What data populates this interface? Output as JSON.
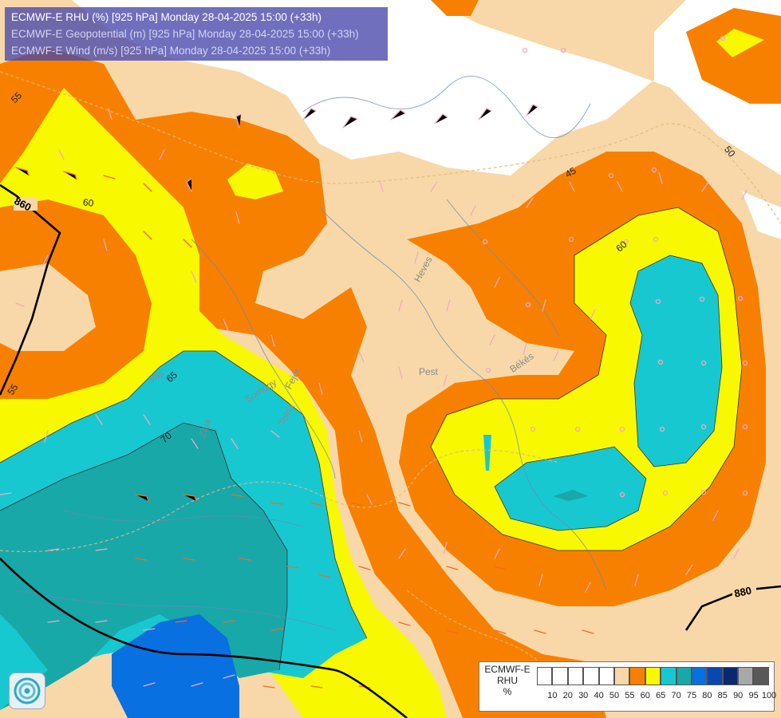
{
  "titles": {
    "line1": "ECMWF-E RHU (%) [925 hPa] Monday 28-04-2025 15:00 (+33h)",
    "line2": "ECMWF-E Geopotential (m) [925 hPa] Monday 28-04-2025 15:00 (+33h)",
    "line3": "ECMWF-E Wind (m/s) [925 hPa] Monday 28-04-2025 15:00 (+33h)"
  },
  "legend": {
    "label_line1": "ECMWF-E",
    "label_line2": "RHU",
    "label_line3": "%",
    "ticks": [
      "10",
      "20",
      "30",
      "40",
      "50",
      "55",
      "60",
      "65",
      "70",
      "75",
      "80",
      "85",
      "90",
      "95",
      "100"
    ],
    "colors": [
      "#ffffff",
      "#ffffff",
      "#ffffff",
      "#ffffff",
      "#ffffff",
      "#f8d8a8",
      "#f88000",
      "#f8f800",
      "#18c8d0",
      "#18a8a8",
      "#0870e0",
      "#0848b0",
      "#082870",
      "#a8a8a8",
      "#585858"
    ]
  },
  "geopotential_labels": {
    "g860": "860",
    "g880": "880"
  },
  "rhu_contour_labels": {
    "c55a": "55",
    "c55b": "55",
    "c55c": "55",
    "c50": "50",
    "c45": "45",
    "c60a": "60",
    "c60b": "60",
    "c65": "65",
    "c70": "70"
  },
  "place_labels": {
    "heves": "Heves",
    "pest": "Pest",
    "bekes": "Békés",
    "vas": "Vas",
    "somogy": "Somogy",
    "tolna": "Tolna",
    "fejer": "Fejér",
    "zala": "Zala"
  }
}
